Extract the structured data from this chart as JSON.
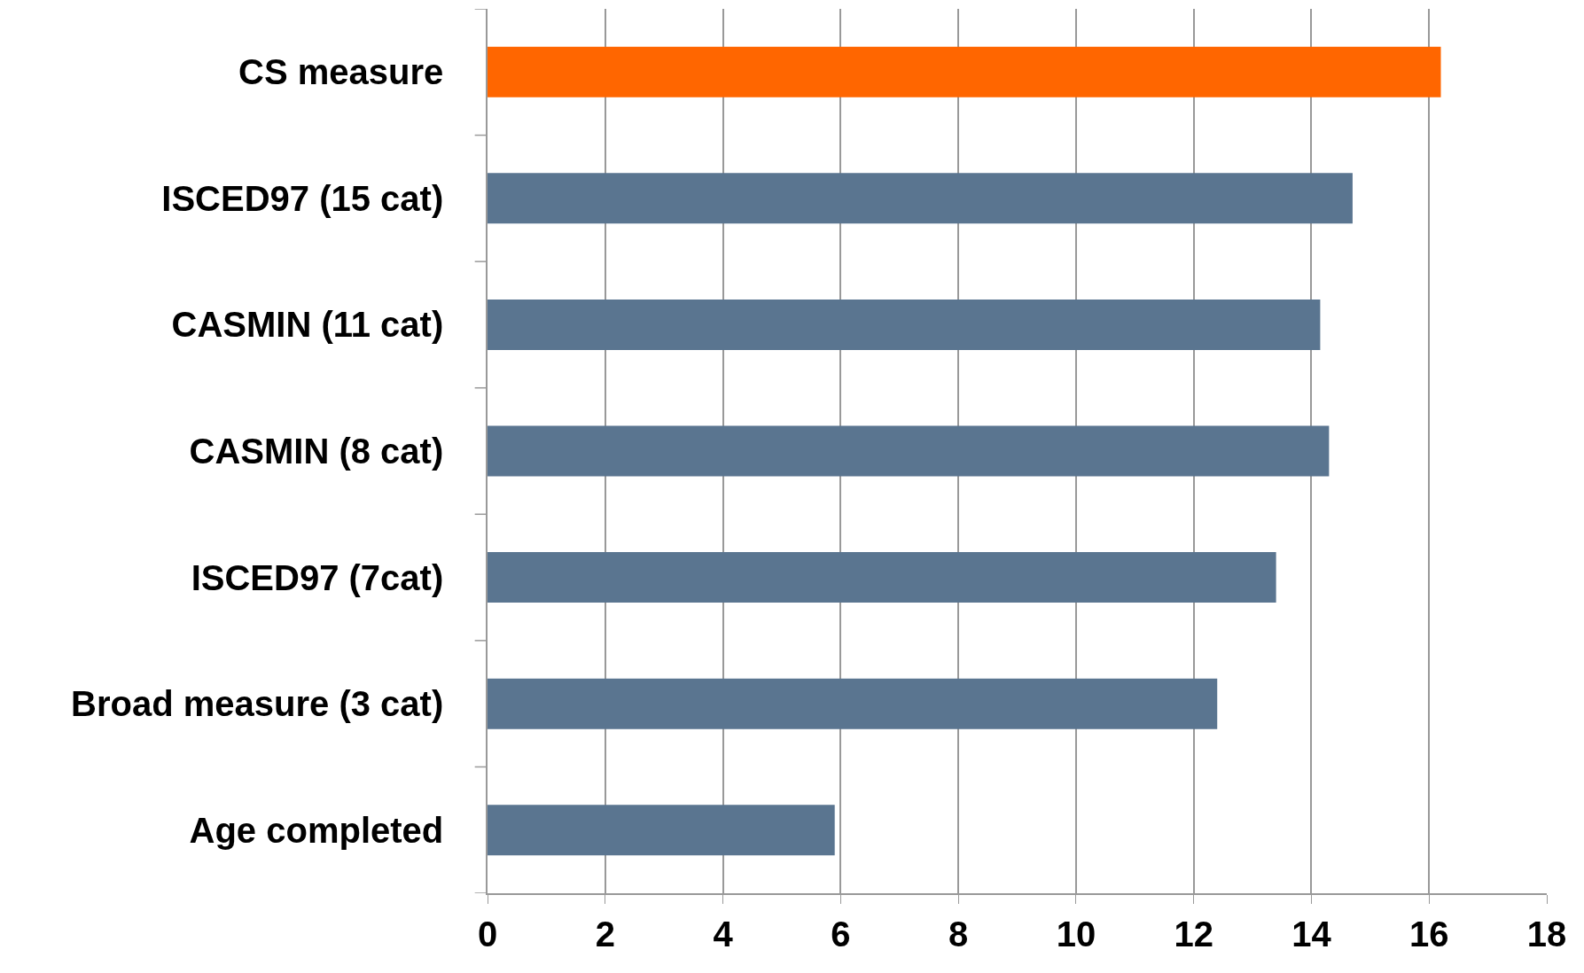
{
  "chart_data": {
    "type": "bar",
    "orientation": "horizontal",
    "categories": [
      "CS measure",
      "ISCED97 (15 cat)",
      "CASMIN (11 cat)",
      "CASMIN (8 cat)",
      "ISCED97 (7cat)",
      "Broad measure (3 cat)",
      "Age completed"
    ],
    "values": [
      16.2,
      14.7,
      14.15,
      14.3,
      13.4,
      12.4,
      5.9
    ],
    "colors": [
      "#ff6600",
      "#5a7590",
      "#5a7590",
      "#5a7590",
      "#5a7590",
      "#5a7590",
      "#5a7590"
    ],
    "xlim": [
      0,
      18
    ],
    "xticks": [
      0,
      2,
      4,
      6,
      8,
      10,
      12,
      14,
      16,
      18
    ],
    "grid": "x"
  }
}
